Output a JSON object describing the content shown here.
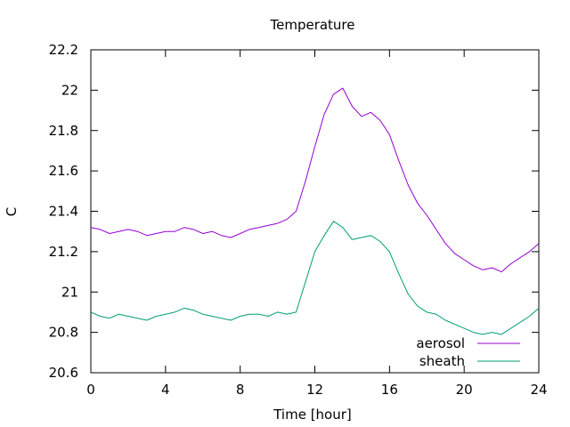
{
  "chart_data": {
    "type": "line",
    "title": "Temperature",
    "xlabel": "Time [hour]",
    "ylabel": "C",
    "xlim": [
      0,
      24
    ],
    "ylim": [
      20.6,
      22.2
    ],
    "xticks": [
      0,
      4,
      8,
      12,
      16,
      20,
      24
    ],
    "yticks": [
      20.6,
      20.8,
      21,
      21.2,
      21.4,
      21.6,
      21.8,
      22,
      22.2
    ],
    "xtick_labels": [
      "0",
      "4",
      "8",
      "12",
      "16",
      "20",
      "24"
    ],
    "ytick_labels": [
      "20.6",
      "20.8",
      "21",
      "21.2",
      "21.4",
      "21.6",
      "21.8",
      "22",
      "22.2"
    ],
    "grid": false,
    "legend_position": "bottom-right",
    "x": [
      0,
      0.5,
      1,
      1.5,
      2,
      2.5,
      3,
      3.5,
      4,
      4.5,
      5,
      5.5,
      6,
      6.5,
      7,
      7.5,
      8,
      8.5,
      9,
      9.5,
      10,
      10.5,
      11,
      11.5,
      12,
      12.5,
      13,
      13.5,
      14,
      14.5,
      15,
      15.5,
      16,
      16.5,
      17,
      17.5,
      18,
      18.5,
      19,
      19.5,
      20,
      20.5,
      21,
      21.5,
      22,
      22.5,
      23,
      23.5,
      24
    ],
    "series": [
      {
        "name": "aerosol",
        "color": "#9400d3",
        "values": [
          21.32,
          21.31,
          21.29,
          21.3,
          21.31,
          21.3,
          21.28,
          21.29,
          21.3,
          21.3,
          21.32,
          21.31,
          21.29,
          21.3,
          21.28,
          21.27,
          21.29,
          21.31,
          21.32,
          21.33,
          21.34,
          21.36,
          21.4,
          21.55,
          21.72,
          21.88,
          21.98,
          22.01,
          21.92,
          21.87,
          21.89,
          21.85,
          21.78,
          21.65,
          21.53,
          21.44,
          21.38,
          21.31,
          21.24,
          21.19,
          21.16,
          21.13,
          21.11,
          21.12,
          21.1,
          21.14,
          21.17,
          21.2,
          21.24
        ]
      },
      {
        "name": "sheath",
        "color": "#009e73",
        "values": [
          20.9,
          20.88,
          20.87,
          20.89,
          20.88,
          20.87,
          20.86,
          20.88,
          20.89,
          20.9,
          20.92,
          20.91,
          20.89,
          20.88,
          20.87,
          20.86,
          20.88,
          20.89,
          20.89,
          20.88,
          20.9,
          20.89,
          20.9,
          21.05,
          21.2,
          21.28,
          21.35,
          21.32,
          21.26,
          21.27,
          21.28,
          21.25,
          21.2,
          21.09,
          20.99,
          20.93,
          20.9,
          20.89,
          20.86,
          20.84,
          20.82,
          20.8,
          20.79,
          20.8,
          20.79,
          20.82,
          20.85,
          20.88,
          20.92
        ]
      }
    ]
  }
}
